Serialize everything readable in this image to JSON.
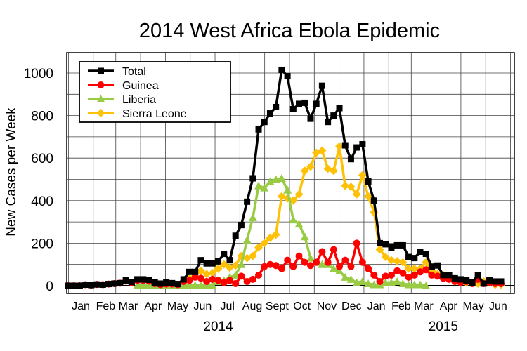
{
  "chart_data": {
    "type": "line",
    "title": "2014 West Africa Ebola Epidemic",
    "xlabel": "",
    "ylabel": "New Cases per Week",
    "ylim": [
      0,
      1100
    ],
    "yticks": [
      0,
      200,
      400,
      600,
      800,
      1000
    ],
    "x_unit": "week index from first week of January 2014",
    "xlim": [
      0,
      75
    ],
    "month_labels": [
      {
        "label": "Jan",
        "x": 2.2
      },
      {
        "label": "Feb",
        "x": 6.5
      },
      {
        "label": "Mar",
        "x": 10.4
      },
      {
        "label": "Apr",
        "x": 14.7
      },
      {
        "label": "May",
        "x": 19.0
      },
      {
        "label": "Jun",
        "x": 23.3
      },
      {
        "label": "Jul",
        "x": 27.6
      },
      {
        "label": "Aug",
        "x": 31.9
      },
      {
        "label": "Sept",
        "x": 36.2
      },
      {
        "label": "Oct",
        "x": 40.5
      },
      {
        "label": "Nov",
        "x": 44.8
      },
      {
        "label": "Dec",
        "x": 49.1
      },
      {
        "label": "Jan",
        "x": 53.4
      },
      {
        "label": "Feb",
        "x": 57.7
      },
      {
        "label": "Mar",
        "x": 61.6
      },
      {
        "label": "Apr",
        "x": 65.9
      },
      {
        "label": "May",
        "x": 70.2
      },
      {
        "label": "Jun",
        "x": 74.5
      }
    ],
    "year_labels": [
      {
        "label": "2014",
        "x": 26.0
      },
      {
        "label": "2015",
        "x": 65.0
      }
    ],
    "grid": true,
    "legend_position": "top-left",
    "series": [
      {
        "name": "Total",
        "color": "#000000",
        "marker": "square",
        "points": [
          [
            0,
            0
          ],
          [
            1,
            0
          ],
          [
            2,
            0
          ],
          [
            3,
            5
          ],
          [
            4,
            3
          ],
          [
            5,
            6
          ],
          [
            6,
            5
          ],
          [
            7,
            8
          ],
          [
            8,
            10
          ],
          [
            9,
            12
          ],
          [
            10,
            25
          ],
          [
            11,
            18
          ],
          [
            12,
            30
          ],
          [
            13,
            30
          ],
          [
            14,
            28
          ],
          [
            15,
            15
          ],
          [
            16,
            10
          ],
          [
            17,
            15
          ],
          [
            18,
            12
          ],
          [
            19,
            8
          ],
          [
            20,
            30
          ],
          [
            21,
            65
          ],
          [
            22,
            65
          ],
          [
            23,
            120
          ],
          [
            24,
            105
          ],
          [
            25,
            105
          ],
          [
            26,
            115
          ],
          [
            27,
            150
          ],
          [
            28,
            120
          ],
          [
            29,
            235
          ],
          [
            30,
            285
          ],
          [
            31,
            395
          ],
          [
            32,
            505
          ],
          [
            33,
            735
          ],
          [
            34,
            770
          ],
          [
            35,
            810
          ],
          [
            36,
            840
          ],
          [
            37,
            1015
          ],
          [
            38,
            985
          ],
          [
            39,
            830
          ],
          [
            40,
            855
          ],
          [
            41,
            860
          ],
          [
            42,
            785
          ],
          [
            43,
            855
          ],
          [
            44,
            940
          ],
          [
            45,
            770
          ],
          [
            46,
            800
          ],
          [
            47,
            835
          ],
          [
            48,
            660
          ],
          [
            49,
            595
          ],
          [
            50,
            650
          ],
          [
            51,
            665
          ],
          [
            52,
            490
          ],
          [
            53,
            400
          ],
          [
            54,
            200
          ],
          [
            55,
            195
          ],
          [
            56,
            180
          ],
          [
            57,
            190
          ],
          [
            58,
            190
          ],
          [
            59,
            135
          ],
          [
            60,
            130
          ],
          [
            61,
            160
          ],
          [
            62,
            150
          ],
          [
            63,
            90
          ],
          [
            64,
            95
          ],
          [
            65,
            50
          ],
          [
            66,
            50
          ],
          [
            67,
            35
          ],
          [
            68,
            30
          ],
          [
            69,
            25
          ],
          [
            70,
            15
          ],
          [
            71,
            50
          ],
          [
            72,
            10
          ],
          [
            73,
            25
          ],
          [
            74,
            20
          ],
          [
            75,
            20
          ]
        ]
      },
      {
        "name": "Guinea",
        "color": "#ff0000",
        "marker": "circle",
        "points": [
          [
            0,
            0
          ],
          [
            1,
            0
          ],
          [
            2,
            0
          ],
          [
            3,
            5
          ],
          [
            4,
            3
          ],
          [
            5,
            6
          ],
          [
            6,
            5
          ],
          [
            7,
            8
          ],
          [
            8,
            10
          ],
          [
            9,
            12
          ],
          [
            10,
            22
          ],
          [
            11,
            15
          ],
          [
            12,
            25
          ],
          [
            13,
            25
          ],
          [
            14,
            22
          ],
          [
            15,
            10
          ],
          [
            16,
            5
          ],
          [
            17,
            8
          ],
          [
            18,
            8
          ],
          [
            19,
            5
          ],
          [
            20,
            20
          ],
          [
            21,
            25
          ],
          [
            22,
            40
          ],
          [
            23,
            35
          ],
          [
            24,
            20
          ],
          [
            25,
            30
          ],
          [
            26,
            25
          ],
          [
            27,
            15
          ],
          [
            28,
            25
          ],
          [
            29,
            10
          ],
          [
            30,
            45
          ],
          [
            31,
            20
          ],
          [
            32,
            30
          ],
          [
            33,
            50
          ],
          [
            34,
            90
          ],
          [
            35,
            100
          ],
          [
            36,
            95
          ],
          [
            37,
            80
          ],
          [
            38,
            120
          ],
          [
            39,
            90
          ],
          [
            40,
            140
          ],
          [
            41,
            110
          ],
          [
            42,
            95
          ],
          [
            43,
            110
          ],
          [
            44,
            160
          ],
          [
            45,
            110
          ],
          [
            46,
            170
          ],
          [
            47,
            90
          ],
          [
            48,
            120
          ],
          [
            49,
            90
          ],
          [
            50,
            200
          ],
          [
            51,
            110
          ],
          [
            52,
            80
          ],
          [
            53,
            50
          ],
          [
            54,
            20
          ],
          [
            55,
            45
          ],
          [
            56,
            50
          ],
          [
            57,
            70
          ],
          [
            58,
            60
          ],
          [
            59,
            40
          ],
          [
            60,
            50
          ],
          [
            61,
            65
          ],
          [
            62,
            75
          ],
          [
            63,
            50
          ],
          [
            64,
            45
          ],
          [
            65,
            35
          ],
          [
            66,
            30
          ],
          [
            67,
            20
          ],
          [
            68,
            15
          ],
          [
            69,
            20
          ],
          [
            70,
            10
          ],
          [
            71,
            30
          ],
          [
            72,
            10
          ],
          [
            73,
            15
          ],
          [
            74,
            10
          ],
          [
            75,
            10
          ]
        ]
      },
      {
        "name": "Liberia",
        "color": "#99cc44",
        "marker": "triangle",
        "points": [
          [
            12,
            2
          ],
          [
            13,
            3
          ],
          [
            14,
            3
          ],
          [
            15,
            2
          ],
          [
            16,
            2
          ],
          [
            17,
            3
          ],
          [
            18,
            2
          ],
          [
            19,
            1
          ],
          [
            20,
            2
          ],
          [
            21,
            2
          ],
          [
            22,
            2
          ],
          [
            23,
            0
          ],
          [
            24,
            2
          ],
          [
            25,
            2
          ],
          [
            26,
            20
          ],
          [
            27,
            25
          ],
          [
            28,
            40
          ],
          [
            29,
            50
          ],
          [
            30,
            100
          ],
          [
            31,
            215
          ],
          [
            32,
            320
          ],
          [
            33,
            470
          ],
          [
            34,
            460
          ],
          [
            35,
            490
          ],
          [
            36,
            500
          ],
          [
            37,
            505
          ],
          [
            38,
            450
          ],
          [
            39,
            310
          ],
          [
            40,
            290
          ],
          [
            41,
            230
          ],
          [
            42,
            130
          ],
          [
            43,
            110
          ],
          [
            44,
            100
          ],
          [
            45,
            100
          ],
          [
            46,
            80
          ],
          [
            47,
            70
          ],
          [
            48,
            40
          ],
          [
            49,
            30
          ],
          [
            50,
            15
          ],
          [
            51,
            20
          ],
          [
            52,
            10
          ],
          [
            53,
            5
          ],
          [
            54,
            5
          ],
          [
            55,
            15
          ],
          [
            56,
            15
          ],
          [
            57,
            20
          ],
          [
            58,
            10
          ],
          [
            59,
            5
          ],
          [
            60,
            5
          ],
          [
            61,
            5
          ],
          [
            62,
            0
          ]
        ]
      },
      {
        "name": "Sierra Leone",
        "color": "#ffc107",
        "marker": "diamond",
        "points": [
          [
            21,
            35
          ],
          [
            22,
            45
          ],
          [
            23,
            70
          ],
          [
            24,
            55
          ],
          [
            25,
            60
          ],
          [
            26,
            80
          ],
          [
            27,
            100
          ],
          [
            28,
            85
          ],
          [
            29,
            95
          ],
          [
            30,
            140
          ],
          [
            31,
            130
          ],
          [
            32,
            140
          ],
          [
            33,
            180
          ],
          [
            34,
            200
          ],
          [
            35,
            225
          ],
          [
            36,
            240
          ],
          [
            37,
            420
          ],
          [
            38,
            410
          ],
          [
            39,
            400
          ],
          [
            40,
            430
          ],
          [
            41,
            540
          ],
          [
            42,
            560
          ],
          [
            43,
            625
          ],
          [
            44,
            635
          ],
          [
            45,
            550
          ],
          [
            46,
            540
          ],
          [
            47,
            655
          ],
          [
            48,
            470
          ],
          [
            49,
            465
          ],
          [
            50,
            430
          ],
          [
            51,
            520
          ],
          [
            52,
            420
          ],
          [
            53,
            345
          ],
          [
            54,
            170
          ],
          [
            55,
            135
          ],
          [
            56,
            120
          ],
          [
            57,
            115
          ],
          [
            58,
            110
          ],
          [
            59,
            80
          ],
          [
            60,
            80
          ],
          [
            61,
            80
          ],
          [
            62,
            110
          ],
          [
            63,
            70
          ],
          [
            64,
            55
          ],
          [
            65,
            50
          ],
          [
            66,
            40
          ],
          [
            67,
            20
          ],
          [
            68,
            20
          ],
          [
            69,
            15
          ],
          [
            70,
            15
          ],
          [
            71,
            10
          ],
          [
            72,
            20
          ],
          [
            73,
            15
          ],
          [
            74,
            5
          ],
          [
            75,
            5
          ]
        ]
      }
    ]
  }
}
